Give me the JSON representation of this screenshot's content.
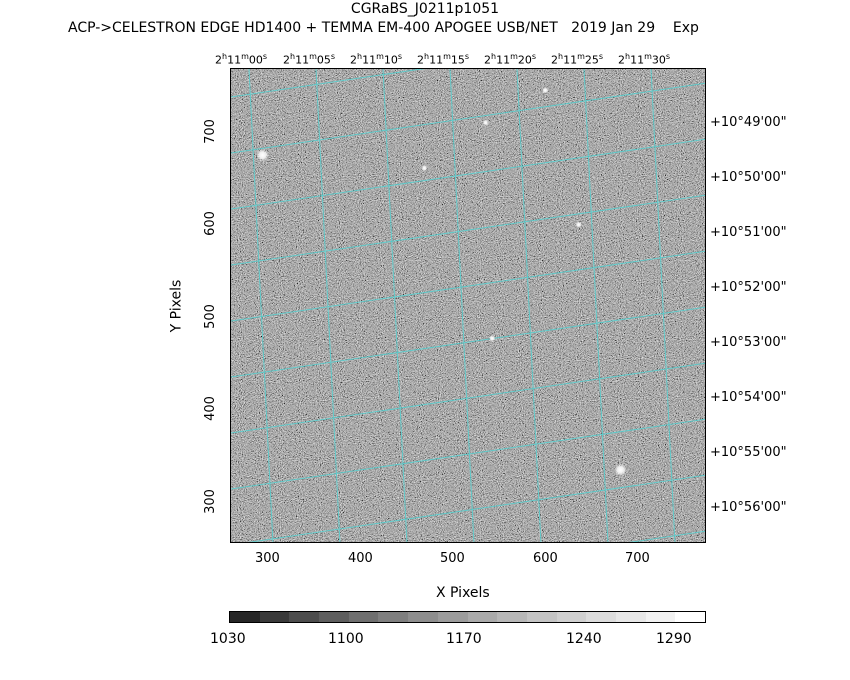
{
  "header": {
    "title": "CGRaBS_J0211p1051",
    "subtitle": "ACP->CELESTRON EDGE HD1400 + TEMMA EM-400 APOGEE USB/NET   2019 Jan 29    Exp"
  },
  "axes": {
    "xlabel": "X Pixels",
    "ylabel": "Y Pixels",
    "x_ticks": [
      "300",
      "400",
      "500",
      "600",
      "700"
    ],
    "y_ticks": [
      "700",
      "600",
      "500",
      "400",
      "300"
    ],
    "ra_ticks": [
      {
        "h": "2",
        "m": "11",
        "s": "00"
      },
      {
        "h": "2",
        "m": "11",
        "s": "05"
      },
      {
        "h": "2",
        "m": "11",
        "s": "10"
      },
      {
        "h": "2",
        "m": "11",
        "s": "15"
      },
      {
        "h": "2",
        "m": "11",
        "s": "20"
      },
      {
        "h": "2",
        "m": "11",
        "s": "25"
      },
      {
        "h": "2",
        "m": "11",
        "s": "30"
      }
    ],
    "dec_ticks": [
      "+10°49'00\"",
      "+10°50'00\"",
      "+10°51'00\"",
      "+10°52'00\"",
      "+10°53'00\"",
      "+10°54'00\"",
      "+10°55'00\"",
      "+10°56'00\""
    ]
  },
  "image": {
    "x_range": [
      258,
      770
    ],
    "y_range": [
      257,
      770
    ],
    "grid_color": "#55d0d0",
    "stars": [
      {
        "x": 292,
        "y": 677,
        "mag": 3
      },
      {
        "x": 677,
        "y": 337,
        "mag": 3
      },
      {
        "x": 596,
        "y": 747,
        "mag": 1
      },
      {
        "x": 466,
        "y": 663,
        "mag": 1
      },
      {
        "x": 632,
        "y": 602,
        "mag": 1
      },
      {
        "x": 532,
        "y": 712,
        "mag": 1
      },
      {
        "x": 539,
        "y": 479,
        "mag": 1
      }
    ]
  },
  "colorbar": {
    "labels": [
      "1030",
      "1100",
      "1170",
      "1240",
      "1290"
    ],
    "min": 1030,
    "max": 1300
  }
}
